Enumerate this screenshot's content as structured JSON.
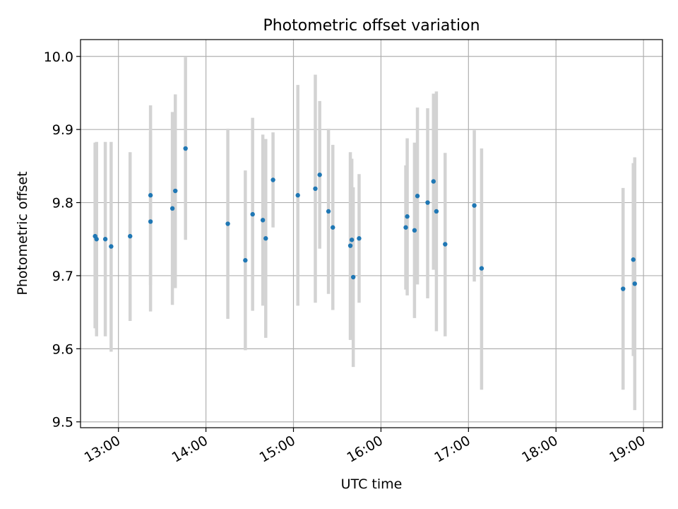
{
  "chart_data": {
    "type": "scatter",
    "title": "Photometric offset variation",
    "xlabel": "UTC time",
    "ylabel": "Photometric offset",
    "x_unit": "UTC time (HH:MM)",
    "xlim": [
      "12:34",
      "19:13"
    ],
    "ylim": [
      9.492,
      10.023
    ],
    "x_ticks": [
      "13:00",
      "14:00",
      "15:00",
      "16:00",
      "17:00",
      "18:00",
      "19:00"
    ],
    "y_ticks": [
      "9.5",
      "9.6",
      "9.7",
      "9.8",
      "9.9",
      "10.0"
    ],
    "grid": true,
    "colors": {
      "points": "#1f77b4",
      "errorbars": "#d3d3d3",
      "grid": "#b0b0b0"
    },
    "points": [
      {
        "x": "12:44",
        "y": 9.754,
        "ymin": 9.628,
        "ymax": 9.882
      },
      {
        "x": "12:45",
        "y": 9.75,
        "ymin": 9.617,
        "ymax": 9.883
      },
      {
        "x": "12:51",
        "y": 9.75,
        "ymin": 9.617,
        "ymax": 9.883
      },
      {
        "x": "12:55",
        "y": 9.74,
        "ymin": 9.596,
        "ymax": 9.883
      },
      {
        "x": "13:08",
        "y": 9.754,
        "ymin": 9.638,
        "ymax": 9.869
      },
      {
        "x": "13:22",
        "y": 9.774,
        "ymin": 9.651,
        "ymax": 9.897
      },
      {
        "x": "13:22",
        "y": 9.81,
        "ymin": 9.687,
        "ymax": 9.933
      },
      {
        "x": "13:37",
        "y": 9.792,
        "ymin": 9.66,
        "ymax": 9.924
      },
      {
        "x": "13:39",
        "y": 9.816,
        "ymin": 9.683,
        "ymax": 9.948
      },
      {
        "x": "13:46",
        "y": 9.874,
        "ymin": 9.749,
        "ymax": 9.999
      },
      {
        "x": "14:15",
        "y": 9.771,
        "ymin": 9.641,
        "ymax": 9.901
      },
      {
        "x": "14:27",
        "y": 9.721,
        "ymin": 9.598,
        "ymax": 9.844
      },
      {
        "x": "14:32",
        "y": 9.784,
        "ymin": 9.652,
        "ymax": 9.916
      },
      {
        "x": "14:39",
        "y": 9.776,
        "ymin": 9.659,
        "ymax": 9.893
      },
      {
        "x": "14:41",
        "y": 9.751,
        "ymin": 9.615,
        "ymax": 9.887
      },
      {
        "x": "14:46",
        "y": 9.831,
        "ymin": 9.766,
        "ymax": 9.896
      },
      {
        "x": "15:03",
        "y": 9.81,
        "ymin": 9.659,
        "ymax": 9.961
      },
      {
        "x": "15:15",
        "y": 9.819,
        "ymin": 9.663,
        "ymax": 9.975
      },
      {
        "x": "15:18",
        "y": 9.838,
        "ymin": 9.737,
        "ymax": 9.939
      },
      {
        "x": "15:24",
        "y": 9.788,
        "ymin": 9.675,
        "ymax": 9.901
      },
      {
        "x": "15:27",
        "y": 9.766,
        "ymin": 9.653,
        "ymax": 9.879
      },
      {
        "x": "15:39",
        "y": 9.741,
        "ymin": 9.612,
        "ymax": 9.869
      },
      {
        "x": "15:40",
        "y": 9.749,
        "ymin": 9.638,
        "ymax": 9.86
      },
      {
        "x": "15:41",
        "y": 9.698,
        "ymin": 9.575,
        "ymax": 9.821
      },
      {
        "x": "15:45",
        "y": 9.751,
        "ymin": 9.663,
        "ymax": 9.839
      },
      {
        "x": "16:17",
        "y": 9.766,
        "ymin": 9.681,
        "ymax": 9.851
      },
      {
        "x": "16:18",
        "y": 9.781,
        "ymin": 9.673,
        "ymax": 9.888
      },
      {
        "x": "16:23",
        "y": 9.762,
        "ymin": 9.642,
        "ymax": 9.882
      },
      {
        "x": "16:25",
        "y": 9.809,
        "ymin": 9.688,
        "ymax": 9.93
      },
      {
        "x": "16:32",
        "y": 9.8,
        "ymin": 9.669,
        "ymax": 9.929
      },
      {
        "x": "16:36",
        "y": 9.829,
        "ymin": 9.708,
        "ymax": 9.949
      },
      {
        "x": "16:38",
        "y": 9.788,
        "ymin": 9.624,
        "ymax": 9.952
      },
      {
        "x": "16:44",
        "y": 9.743,
        "ymin": 9.617,
        "ymax": 9.868
      },
      {
        "x": "17:04",
        "y": 9.796,
        "ymin": 9.692,
        "ymax": 9.899
      },
      {
        "x": "17:09",
        "y": 9.71,
        "ymin": 9.544,
        "ymax": 9.874
      },
      {
        "x": "18:46",
        "y": 9.682,
        "ymin": 9.544,
        "ymax": 9.82
      },
      {
        "x": "18:53",
        "y": 9.722,
        "ymin": 9.59,
        "ymax": 9.854
      },
      {
        "x": "18:54",
        "y": 9.689,
        "ymin": 9.516,
        "ymax": 9.862
      }
    ]
  }
}
